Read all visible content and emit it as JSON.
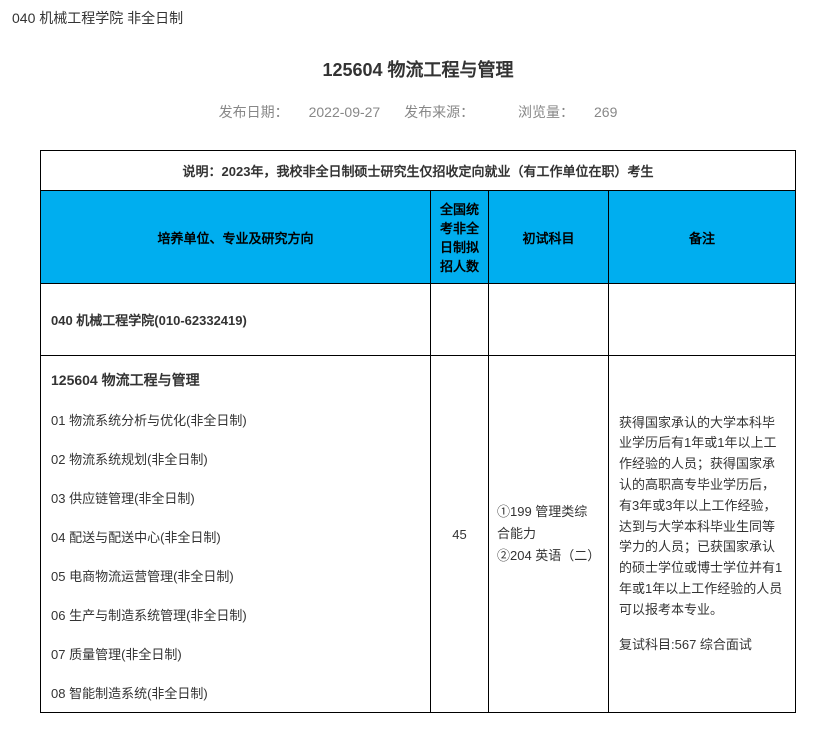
{
  "breadcrumb": "040 机械工程学院 非全日制",
  "title": "125604 物流工程与管理",
  "meta": {
    "date_label": "发布日期：",
    "date_value": "2022-09-27",
    "source_label": "发布来源：",
    "source_value": "",
    "views_label": "浏览量：",
    "views_value": "269"
  },
  "table": {
    "description": "说明：2023年，我校非全日制硕士研究生仅招收定向就业（有工作单位在职）考生",
    "headers": {
      "unit": "培养单位、专业及研究方向",
      "num": "全国统考非全日制拟招人数",
      "subject": "初试科目",
      "note": "备注"
    },
    "unit_row": "040 机械工程学院(010-62332419)",
    "major_title": "125604 物流工程与管理",
    "directions": [
      "01 物流系统分析与优化(非全日制)",
      "02 物流系统规划(非全日制)",
      "03 供应链管理(非全日制)",
      "04 配送与配送中心(非全日制)",
      "05 电商物流运营管理(非全日制)",
      "06 生产与制造系统管理(非全日制)",
      "07 质量管理(非全日制)",
      "08 智能制造系统(非全日制)"
    ],
    "enroll_num": "45",
    "subjects": {
      "line1": "①199 管理类综合能力",
      "line2": "②204 英语（二）"
    },
    "note": {
      "para1": "获得国家承认的大学本科毕业学历后有1年或1年以上工作经验的人员；获得国家承认的高职高专毕业学历后，有3年或3年以上工作经验，达到与大学本科毕业生同等学力的人员；已获国家承认的硕士学位或博士学位并有1年或1年以上工作经验的人员可以报考本专业。",
      "para2": "复试科目:567 综合面试"
    }
  },
  "colors": {
    "header_bg": "#00aeef",
    "border": "#000000",
    "text": "#333333",
    "meta_text": "#888888",
    "bg": "#ffffff"
  }
}
